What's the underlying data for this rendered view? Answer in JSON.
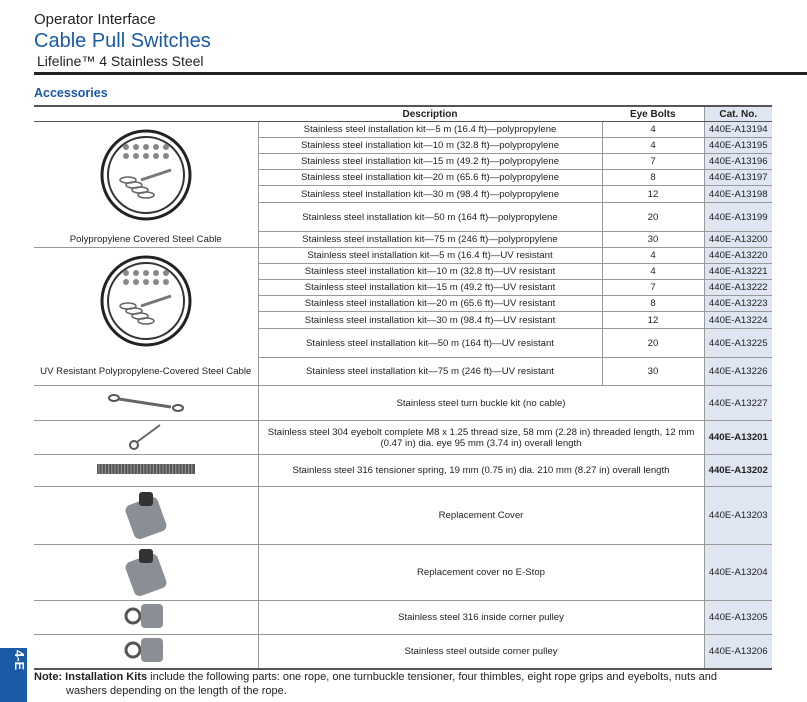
{
  "header": {
    "section": "Operator Interface",
    "title": "Cable Pull Switches",
    "subtitle": "Lifeline™ 4 Stainless Steel",
    "heading": "Accessories"
  },
  "table": {
    "columns": [
      "Description",
      "Eye Bolts",
      "Cat. No."
    ],
    "group1_label": "Polypropylene Covered Steel Cable",
    "group2_label": "UV Resistant Polypropylene-Covered Steel Cable",
    "group1": [
      {
        "desc": "Stainless steel installation kit—5 m (16.4 ft)—polypropylene",
        "bolts": "4",
        "cat": "440E-A13194"
      },
      {
        "desc": "Stainless steel installation kit—10 m (32.8 ft)—polypropylene",
        "bolts": "4",
        "cat": "440E-A13195"
      },
      {
        "desc": "Stainless steel installation kit—15 m (49.2 ft)—polypropylene",
        "bolts": "7",
        "cat": "440E-A13196"
      },
      {
        "desc": "Stainless steel installation kit—20 m (65.6 ft)—polypropylene",
        "bolts": "8",
        "cat": "440E-A13197"
      },
      {
        "desc": "Stainless steel installation kit—30 m (98.4 ft)—polypropylene",
        "bolts": "12",
        "cat": "440E-A13198"
      },
      {
        "desc": "Stainless steel installation kit—50 m (164 ft)—polypropylene",
        "bolts": "20",
        "cat": "440E-A13199"
      },
      {
        "desc": "Stainless steel installation kit—75 m (246 ft)—polypropylene",
        "bolts": "30",
        "cat": "440E-A13200"
      }
    ],
    "group2": [
      {
        "desc": "Stainless steel installation kit—5 m (16.4 ft)—UV resistant",
        "bolts": "4",
        "cat": "440E-A13220"
      },
      {
        "desc": "Stainless steel installation kit—10 m (32.8 ft)—UV resistant",
        "bolts": "4",
        "cat": "440E-A13221"
      },
      {
        "desc": "Stainless steel installation kit—15 m (49.2 ft)—UV resistant",
        "bolts": "7",
        "cat": "440E-A13222"
      },
      {
        "desc": "Stainless steel installation kit—20 m (65.6 ft)—UV resistant",
        "bolts": "8",
        "cat": "440E-A13223"
      },
      {
        "desc": "Stainless steel installation kit—30 m (98.4 ft)—UV resistant",
        "bolts": "12",
        "cat": "440E-A13224"
      },
      {
        "desc": "Stainless steel installation kit—50 m (164 ft)—UV resistant",
        "bolts": "20",
        "cat": "440E-A13225"
      },
      {
        "desc": "Stainless steel installation kit—75 m (246 ft)—UV resistant",
        "bolts": "30",
        "cat": "440E-A13226"
      }
    ],
    "others": [
      {
        "desc": "Stainless steel turn buckle kit (no cable)",
        "cat": "440E-A13227",
        "icon": "turnbuckle-icon"
      },
      {
        "desc": "Stainless steel 304 eyebolt complete M8 x 1.25 thread size, 58 mm (2.28 in) threaded length, 12 mm (0.47 in) dia. eye 95 mm (3.74 in) overall length",
        "cat": "440E-A13201",
        "icon": "eyebolt-icon"
      },
      {
        "desc": "Stainless steel 316 tensioner spring, 19 mm (0.75 in) dia. 210 mm (8.27 in) overall length",
        "cat": "440E-A13202",
        "icon": "spring-icon"
      },
      {
        "desc": "Replacement Cover",
        "cat": "440E-A13203",
        "icon": "cover-icon"
      },
      {
        "desc": "Replacement cover no E-Stop",
        "cat": "440E-A13204",
        "icon": "cover-icon"
      },
      {
        "desc": "Stainless steel 316 inside corner pulley",
        "cat": "440E-A13205",
        "icon": "pulley-icon"
      },
      {
        "desc": "Stainless steel outside corner pulley",
        "cat": "440E-A13206",
        "icon": "pulley-icon"
      }
    ]
  },
  "note": {
    "prefix": "Note:",
    "bold": "Installation Kits",
    "text": " include the following parts: one rope, one turnbuckle tensioner, four thimbles, eight rope grips and eyebolts, nuts and",
    "text2": "washers depending on the length of the rope."
  },
  "side_tab": "4-E",
  "colors": {
    "accent": "#1a5aa6",
    "cat_bg": "#dfe6f2"
  }
}
